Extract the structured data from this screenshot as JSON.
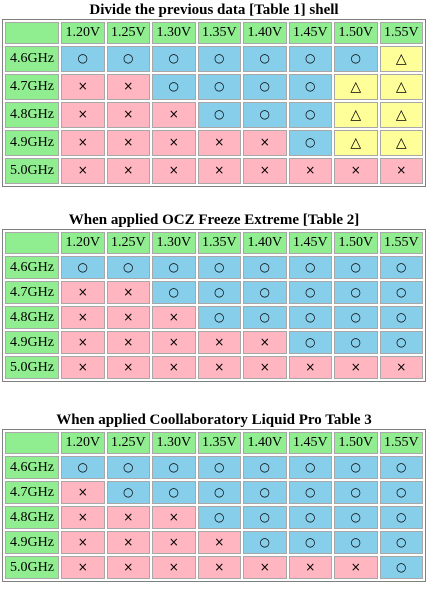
{
  "voltages": [
    "1.20V",
    "1.25V",
    "1.30V",
    "1.35V",
    "1.40V",
    "1.45V",
    "1.50V",
    "1.55V"
  ],
  "symbols": {
    "o": "○",
    "x": "×",
    "t": "△"
  },
  "colors": {
    "header": "#90ee90",
    "o": "#87ceeb",
    "x": "#ffb6c1",
    "t": "#ffff99"
  },
  "tables": [
    {
      "title": "Divide the previous data [Table 1] shell",
      "rows": [
        {
          "freq": "4.6GHz",
          "cells": [
            "o",
            "o",
            "o",
            "o",
            "o",
            "o",
            "o",
            "t"
          ]
        },
        {
          "freq": "4.7GHz",
          "cells": [
            "x",
            "x",
            "o",
            "o",
            "o",
            "o",
            "t",
            "t"
          ]
        },
        {
          "freq": "4.8GHz",
          "cells": [
            "x",
            "x",
            "x",
            "o",
            "o",
            "o",
            "t",
            "t"
          ]
        },
        {
          "freq": "4.9GHz",
          "cells": [
            "x",
            "x",
            "x",
            "x",
            "x",
            "o",
            "t",
            "t"
          ]
        },
        {
          "freq": "5.0GHz",
          "cells": [
            "x",
            "x",
            "x",
            "x",
            "x",
            "x",
            "x",
            "x"
          ]
        }
      ]
    },
    {
      "title": "When applied OCZ Freeze Extreme [Table 2]",
      "rows": [
        {
          "freq": "4.6GHz",
          "cells": [
            "o",
            "o",
            "o",
            "o",
            "o",
            "o",
            "o",
            "o"
          ]
        },
        {
          "freq": "4.7GHz",
          "cells": [
            "x",
            "x",
            "o",
            "o",
            "o",
            "o",
            "o",
            "o"
          ]
        },
        {
          "freq": "4.8GHz",
          "cells": [
            "x",
            "x",
            "x",
            "o",
            "o",
            "o",
            "o",
            "o"
          ]
        },
        {
          "freq": "4.9GHz",
          "cells": [
            "x",
            "x",
            "x",
            "x",
            "x",
            "o",
            "o",
            "o"
          ]
        },
        {
          "freq": "5.0GHz",
          "cells": [
            "x",
            "x",
            "x",
            "x",
            "x",
            "x",
            "x",
            "x"
          ]
        }
      ]
    },
    {
      "title": "When applied Coollaboratory Liquid Pro Table 3",
      "rows": [
        {
          "freq": "4.6GHz",
          "cells": [
            "o",
            "o",
            "o",
            "o",
            "o",
            "o",
            "o",
            "o"
          ]
        },
        {
          "freq": "4.7GHz",
          "cells": [
            "x",
            "o",
            "o",
            "o",
            "o",
            "o",
            "o",
            "o"
          ]
        },
        {
          "freq": "4.8GHz",
          "cells": [
            "x",
            "x",
            "x",
            "o",
            "o",
            "o",
            "o",
            "o"
          ]
        },
        {
          "freq": "4.9GHz",
          "cells": [
            "x",
            "x",
            "x",
            "x",
            "o",
            "o",
            "o",
            "o"
          ]
        },
        {
          "freq": "5.0GHz",
          "cells": [
            "x",
            "x",
            "x",
            "x",
            "x",
            "x",
            "x",
            "o"
          ]
        }
      ]
    }
  ]
}
